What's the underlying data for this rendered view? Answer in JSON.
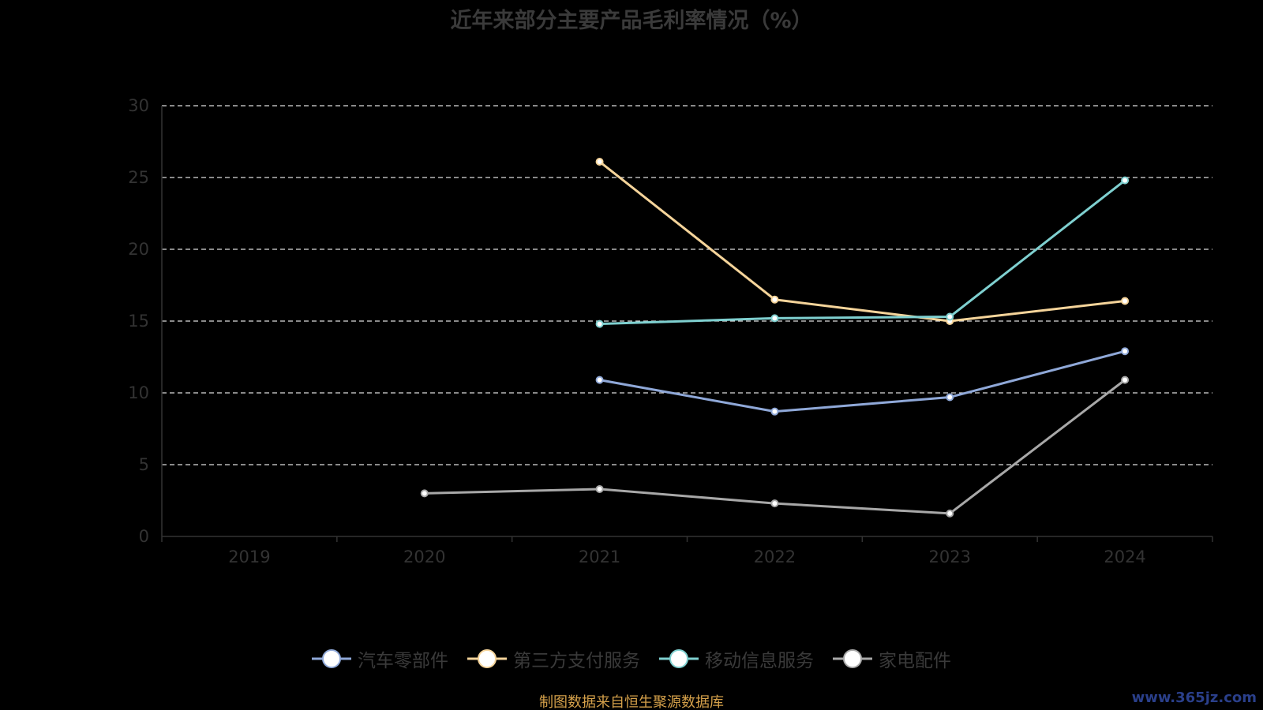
{
  "chart_data": {
    "type": "line",
    "title": "近年来部分主要产品毛利率情况（%）",
    "categories": [
      "2019",
      "2020",
      "2021",
      "2022",
      "2023",
      "2024"
    ],
    "ylim": [
      0,
      30
    ],
    "yticks": [
      0,
      5,
      10,
      15,
      20,
      25,
      30
    ],
    "grid": true,
    "legend_position": "bottom",
    "series": [
      {
        "name": "汽车零部件",
        "color": "#8fa8d8",
        "values": [
          null,
          null,
          10.9,
          8.7,
          9.7,
          12.9
        ]
      },
      {
        "name": "第三方支付服务",
        "color": "#f5d49a",
        "values": [
          null,
          null,
          26.1,
          16.5,
          15.0,
          16.4
        ]
      },
      {
        "name": "移动信息服务",
        "color": "#7fd0d0",
        "values": [
          null,
          null,
          14.8,
          15.2,
          15.3,
          24.8
        ]
      },
      {
        "name": "家电配件",
        "color": "#a8a8a8",
        "values": [
          null,
          3.0,
          3.3,
          2.3,
          1.6,
          10.9
        ]
      }
    ]
  },
  "footer": {
    "source": "制图数据来自恒生聚源数据库",
    "watermark": "www.365jz.com"
  }
}
